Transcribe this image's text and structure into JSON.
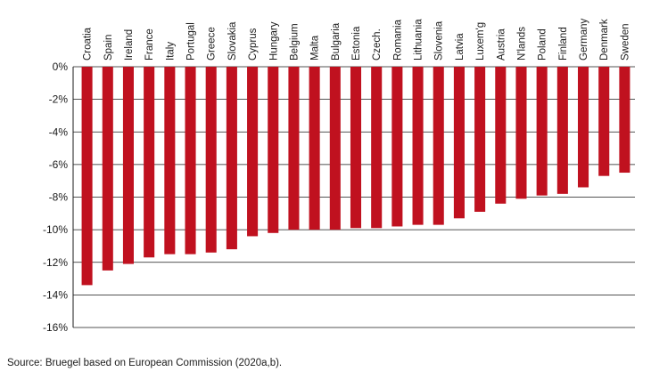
{
  "chart_data": {
    "type": "bar",
    "categories": [
      "Croatia",
      "Spain",
      "Ireland",
      "France",
      "Italy",
      "Portugal",
      "Greece",
      "Slovakia",
      "Cyprus",
      "Hungary",
      "Belgium",
      "Malta",
      "Bulgaria",
      "Estonia",
      "Czech.",
      "Romania",
      "Lithuania",
      "Slovenia",
      "Latvia",
      "Luxem'g",
      "Austria",
      "N'lands",
      "Poland",
      "Finland",
      "Germany",
      "Denmark",
      "Sweden"
    ],
    "values": [
      -13.4,
      -12.5,
      -12.1,
      -11.7,
      -11.5,
      -11.5,
      -11.4,
      -11.2,
      -10.4,
      -10.2,
      -10.0,
      -10.0,
      -10.0,
      -9.9,
      -9.9,
      -9.8,
      -9.7,
      -9.7,
      -9.3,
      -8.9,
      -8.4,
      -8.1,
      -7.9,
      -7.8,
      -7.4,
      -6.7,
      -6.5
    ],
    "title": "",
    "xlabel": "",
    "ylabel": "",
    "ylim": [
      -16,
      0
    ],
    "y_ticks": [
      0,
      -2,
      -4,
      -6,
      -8,
      -10,
      -12,
      -14,
      -16
    ],
    "y_tick_labels": [
      "0%",
      "-2%",
      "-4%",
      "-6%",
      "-8%",
      "-10%",
      "-12%",
      "-14%",
      "-16%"
    ],
    "grid": true,
    "legend": "none",
    "bar_color": "#c0111f"
  },
  "source_note": "Source: Bruegel based on European Commission (2020a,b)."
}
